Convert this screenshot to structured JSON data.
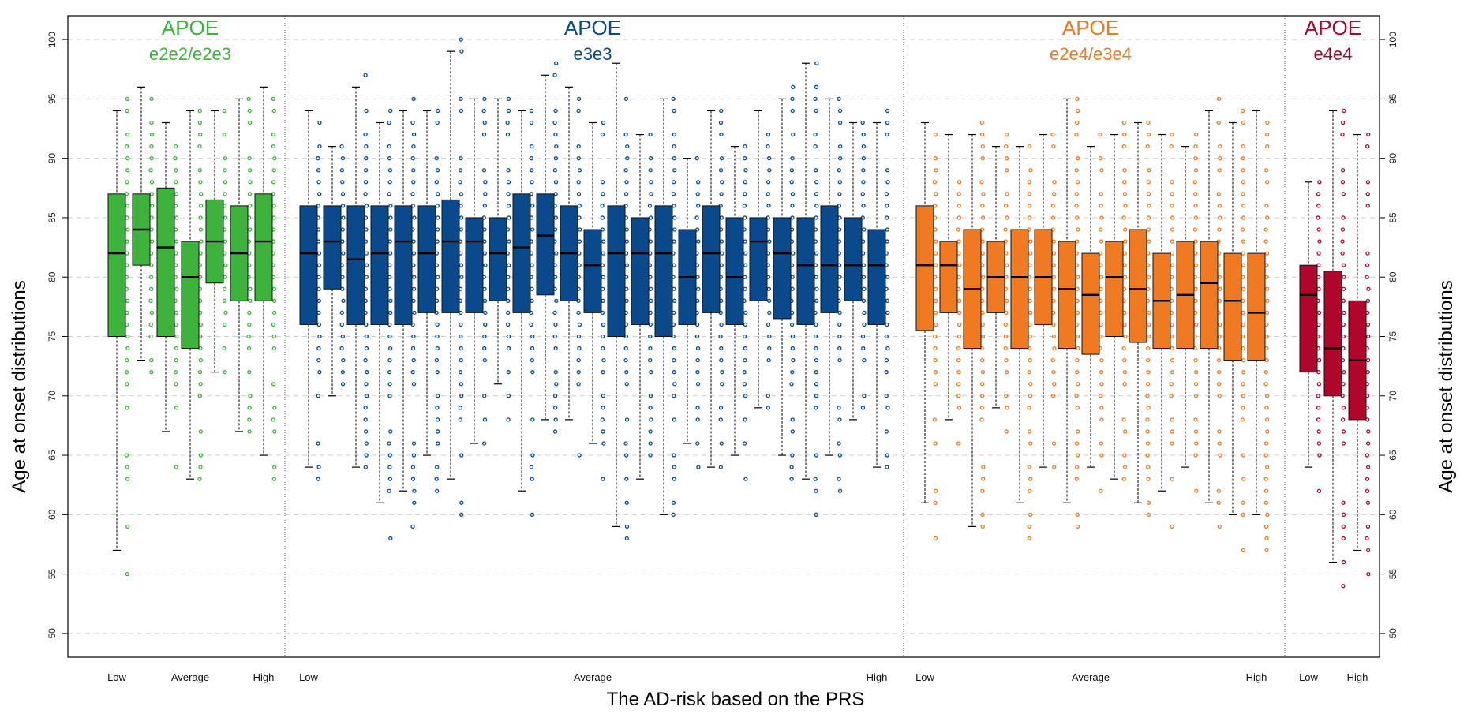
{
  "chart_data": {
    "type": "box",
    "xlabel": "The AD-risk based on the PRS",
    "ylabel": "Age at onset distributions",
    "ylim": [
      48,
      102
    ],
    "yticks": [
      50,
      55,
      60,
      65,
      70,
      75,
      80,
      85,
      90,
      95,
      100
    ],
    "grid": "horizontal dashed",
    "groups": [
      {
        "name_line1": "APOE",
        "name_line2": "e2e2/e2e3",
        "color": "#3db33d",
        "x_labels": [
          "Low",
          "Average",
          "High"
        ],
        "boxes": [
          {
            "wlo": 57,
            "q1": 75,
            "med": 82,
            "q3": 87,
            "whi": 94
          },
          {
            "wlo": 73,
            "q1": 81,
            "med": 84,
            "q3": 87,
            "whi": 96
          },
          {
            "wlo": 67,
            "q1": 75,
            "med": 82.5,
            "q3": 87.5,
            "whi": 93
          },
          {
            "wlo": 63,
            "q1": 74,
            "med": 80,
            "q3": 83,
            "whi": 94
          },
          {
            "wlo": 72,
            "q1": 79.5,
            "med": 83,
            "q3": 86.5,
            "whi": 94
          },
          {
            "wlo": 67,
            "q1": 78,
            "med": 82,
            "q3": 86,
            "whi": 95
          },
          {
            "wlo": 65,
            "q1": 78,
            "med": 83,
            "q3": 87,
            "whi": 96
          }
        ]
      },
      {
        "name_line1": "APOE",
        "name_line2": "e3e3",
        "color": "#0a4a8c",
        "x_labels": [
          "Low",
          "Average",
          "High"
        ],
        "boxes": [
          {
            "wlo": 64,
            "q1": 76,
            "med": 82,
            "q3": 86,
            "whi": 94
          },
          {
            "wlo": 70,
            "q1": 79,
            "med": 83,
            "q3": 86,
            "whi": 91
          },
          {
            "wlo": 64,
            "q1": 76,
            "med": 81.5,
            "q3": 86,
            "whi": 96
          },
          {
            "wlo": 61,
            "q1": 76,
            "med": 82,
            "q3": 86,
            "whi": 93
          },
          {
            "wlo": 62,
            "q1": 76,
            "med": 83,
            "q3": 86,
            "whi": 94
          },
          {
            "wlo": 65,
            "q1": 77,
            "med": 82,
            "q3": 86,
            "whi": 94
          },
          {
            "wlo": 63,
            "q1": 77,
            "med": 83,
            "q3": 86.5,
            "whi": 99
          },
          {
            "wlo": 66,
            "q1": 77,
            "med": 83,
            "q3": 85,
            "whi": 95
          },
          {
            "wlo": 71,
            "q1": 78,
            "med": 82,
            "q3": 85,
            "whi": 95
          },
          {
            "wlo": 62,
            "q1": 77,
            "med": 82.5,
            "q3": 87,
            "whi": 94
          },
          {
            "wlo": 68,
            "q1": 78.5,
            "med": 83.5,
            "q3": 87,
            "whi": 97
          },
          {
            "wlo": 68,
            "q1": 78,
            "med": 82,
            "q3": 86,
            "whi": 96
          },
          {
            "wlo": 66,
            "q1": 77,
            "med": 81,
            "q3": 84,
            "whi": 93
          },
          {
            "wlo": 59,
            "q1": 75,
            "med": 82,
            "q3": 86,
            "whi": 98
          },
          {
            "wlo": 63,
            "q1": 76,
            "med": 82,
            "q3": 85,
            "whi": 92
          },
          {
            "wlo": 60,
            "q1": 75,
            "med": 82,
            "q3": 86,
            "whi": 95
          },
          {
            "wlo": 66,
            "q1": 76,
            "med": 80,
            "q3": 84,
            "whi": 90
          },
          {
            "wlo": 64,
            "q1": 77,
            "med": 82,
            "q3": 86,
            "whi": 94
          },
          {
            "wlo": 65,
            "q1": 76,
            "med": 80,
            "q3": 85,
            "whi": 91
          },
          {
            "wlo": 69,
            "q1": 78,
            "med": 83,
            "q3": 85,
            "whi": 94
          },
          {
            "wlo": 65,
            "q1": 76.5,
            "med": 82,
            "q3": 85,
            "whi": 95
          },
          {
            "wlo": 63,
            "q1": 76,
            "med": 81,
            "q3": 85,
            "whi": 98
          },
          {
            "wlo": 65,
            "q1": 77,
            "med": 81,
            "q3": 86,
            "whi": 95
          },
          {
            "wlo": 68,
            "q1": 78,
            "med": 81,
            "q3": 85,
            "whi": 93
          },
          {
            "wlo": 64,
            "q1": 76,
            "med": 81,
            "q3": 84,
            "whi": 93
          }
        ]
      },
      {
        "name_line1": "APOE",
        "name_line2": "e2e4/e3e4",
        "color": "#f07a22",
        "x_labels": [
          "Low",
          "Average",
          "High"
        ],
        "boxes": [
          {
            "wlo": 61,
            "q1": 75.5,
            "med": 81,
            "q3": 86,
            "whi": 93
          },
          {
            "wlo": 68,
            "q1": 77,
            "med": 81,
            "q3": 83,
            "whi": 92
          },
          {
            "wlo": 59,
            "q1": 74,
            "med": 79,
            "q3": 84,
            "whi": 92
          },
          {
            "wlo": 69,
            "q1": 77,
            "med": 80,
            "q3": 83,
            "whi": 91
          },
          {
            "wlo": 61,
            "q1": 74,
            "med": 80,
            "q3": 84,
            "whi": 91
          },
          {
            "wlo": 64,
            "q1": 76,
            "med": 80,
            "q3": 84,
            "whi": 92
          },
          {
            "wlo": 61,
            "q1": 74,
            "med": 79,
            "q3": 83,
            "whi": 95
          },
          {
            "wlo": 64,
            "q1": 73.5,
            "med": 78.5,
            "q3": 82,
            "whi": 91
          },
          {
            "wlo": 63,
            "q1": 75,
            "med": 80,
            "q3": 83,
            "whi": 92
          },
          {
            "wlo": 61,
            "q1": 74.5,
            "med": 79,
            "q3": 84,
            "whi": 93
          },
          {
            "wlo": 62,
            "q1": 74,
            "med": 78,
            "q3": 82,
            "whi": 92
          },
          {
            "wlo": 64,
            "q1": 74,
            "med": 78.5,
            "q3": 83,
            "whi": 91
          },
          {
            "wlo": 61,
            "q1": 74,
            "med": 79.5,
            "q3": 83,
            "whi": 94
          },
          {
            "wlo": 60,
            "q1": 73,
            "med": 78,
            "q3": 82,
            "whi": 93
          },
          {
            "wlo": 60,
            "q1": 73,
            "med": 77,
            "q3": 82,
            "whi": 94
          }
        ]
      },
      {
        "name_line1": "APOE",
        "name_line2": "e4e4",
        "color": "#b0062c",
        "x_labels": [
          "Low",
          "High"
        ],
        "boxes": [
          {
            "wlo": 64,
            "q1": 72,
            "med": 78.5,
            "q3": 81,
            "whi": 88
          },
          {
            "wlo": 56,
            "q1": 70,
            "med": 74,
            "q3": 80.5,
            "whi": 94
          },
          {
            "wlo": 57,
            "q1": 68,
            "med": 73,
            "q3": 78,
            "whi": 92
          }
        ]
      }
    ]
  }
}
